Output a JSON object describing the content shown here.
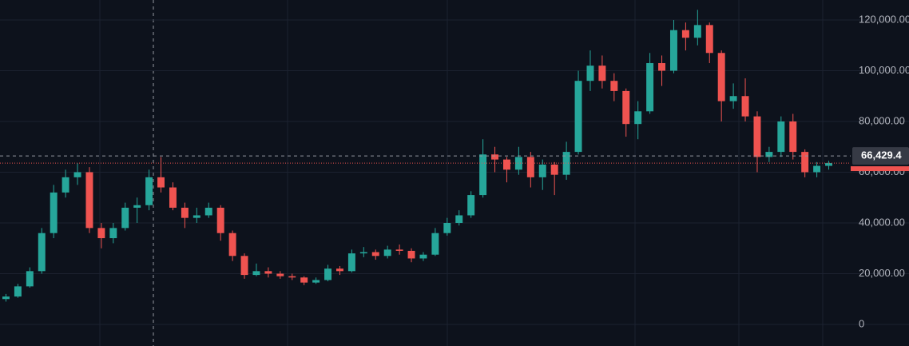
{
  "chart_data": {
    "type": "candlestick",
    "up_color": "#26a69a",
    "down_color": "#ef5350",
    "grid": true,
    "open": [
      10000,
      11000,
      15000,
      21000,
      36000,
      52000,
      58000,
      60000,
      38000,
      34000,
      38000,
      46000,
      47000,
      58000,
      54000,
      46000,
      42000,
      43000,
      46000,
      36000,
      27000,
      19500,
      21000,
      20000,
      19000,
      18500,
      16500,
      17500,
      22000,
      21000,
      28000,
      28500,
      27000,
      29500,
      29000,
      26000,
      27500,
      36000,
      40000,
      43000,
      51000,
      67000,
      65000,
      61000,
      66000,
      58000,
      63000,
      59000,
      68000,
      96000,
      102000,
      96000,
      92000,
      79000,
      84000,
      103000,
      100000,
      116000,
      113000,
      118000,
      107000,
      88000,
      90000,
      82000,
      66000,
      68000,
      80000,
      68000,
      60000,
      62500
    ],
    "high": [
      12000,
      16000,
      22500,
      38000,
      55000,
      61000,
      63500,
      62000,
      40000,
      40000,
      48000,
      50000,
      61000,
      66000,
      56000,
      48000,
      46000,
      48000,
      47000,
      37000,
      28000,
      24000,
      22500,
      21000,
      20000,
      19000,
      18500,
      23500,
      23000,
      29500,
      30500,
      29500,
      31000,
      31500,
      30000,
      28500,
      38000,
      42000,
      45000,
      52500,
      73000,
      70000,
      66000,
      70000,
      68000,
      65000,
      64000,
      72000,
      100000,
      108000,
      106000,
      99000,
      93000,
      88000,
      107000,
      106000,
      120000,
      119000,
      124000,
      119000,
      108000,
      95000,
      97000,
      84000,
      70000,
      82000,
      83000,
      69000,
      64000,
      64500
    ],
    "low": [
      9000,
      10500,
      14500,
      20000,
      34000,
      50000,
      55000,
      36000,
      30000,
      32000,
      37000,
      40000,
      45000,
      52000,
      45000,
      38000,
      40000,
      42000,
      33000,
      25000,
      18000,
      19000,
      18500,
      18000,
      17500,
      15500,
      16000,
      17000,
      19500,
      20500,
      26500,
      25500,
      26000,
      27500,
      24500,
      25000,
      27000,
      35000,
      39000,
      42000,
      50000,
      60000,
      56000,
      59000,
      54000,
      53000,
      51000,
      57000,
      67000,
      92000,
      93000,
      88000,
      74000,
      73000,
      83000,
      94000,
      99000,
      108000,
      110000,
      103000,
      80000,
      85000,
      80000,
      60000,
      64000,
      66000,
      65000,
      58000,
      58000,
      61000
    ],
    "close": [
      11000,
      15000,
      21000,
      36000,
      52000,
      58000,
      60000,
      38000,
      34000,
      38000,
      46000,
      47000,
      58000,
      54000,
      46000,
      42000,
      43000,
      46000,
      36000,
      27000,
      19500,
      21000,
      20000,
      19000,
      18500,
      16500,
      17500,
      22000,
      21000,
      28000,
      28500,
      27000,
      29500,
      29000,
      26000,
      27500,
      36000,
      40000,
      43000,
      51000,
      67000,
      65000,
      61000,
      66000,
      58000,
      63000,
      59000,
      68000,
      96000,
      102000,
      96000,
      92000,
      79000,
      84000,
      103000,
      100000,
      116000,
      113000,
      118000,
      107000,
      88000,
      90000,
      82000,
      66000,
      68000,
      80000,
      68000,
      60000,
      62500,
      63600
    ],
    "ylim": [
      -8504,
      127874
    ],
    "yticks": [
      0,
      {
        "value": 20000,
        "label": "20,000.00"
      },
      {
        "value": 40000,
        "label": "40,000.00"
      },
      {
        "value": 60000,
        "label": "60,000.00"
      },
      {
        "value": 80000,
        "label": "80,000.00"
      },
      {
        "value": 100000,
        "label": "100,000.00"
      },
      {
        "value": 120000,
        "label": "120,000.00"
      }
    ],
    "crosshair": {
      "value": 66429.4,
      "label": "66,429.4"
    }
  }
}
